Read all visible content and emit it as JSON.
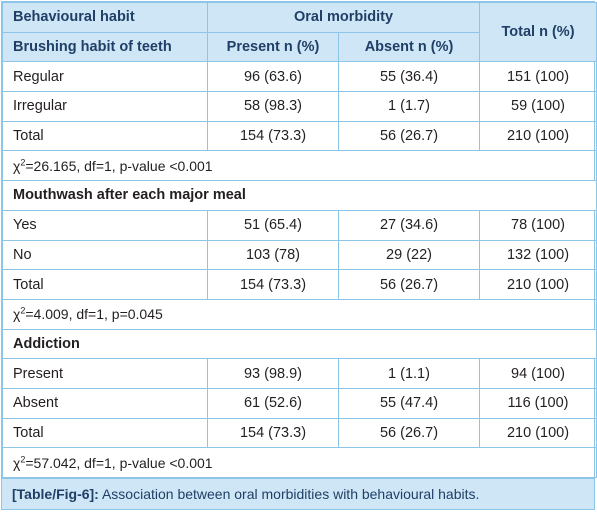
{
  "header": {
    "col1_top": "Behavioural habit",
    "group": "Oral morbidity",
    "col1_sub": "Brushing habit of teeth",
    "present": "Present n (%)",
    "absent": "Absent n (%)",
    "total": "Total n (%)"
  },
  "brushing": {
    "rows": [
      {
        "label": "Regular",
        "present": "96 (63.6)",
        "absent": "55 (36.4)",
        "total": "151 (100)"
      },
      {
        "label": "Irregular",
        "present": "58 (98.3)",
        "absent": "1 (1.7)",
        "total": "59 (100)"
      },
      {
        "label": "Total",
        "present": "154 (73.3)",
        "absent": "56 (26.7)",
        "total": "210 (100)"
      }
    ],
    "stat_chi": "χ",
    "stat_sup": "2",
    "stat_rest": "=26.165, df=1, p-value <0.001"
  },
  "mouthwash": {
    "title": "Mouthwash after each major meal",
    "rows": [
      {
        "label": "Yes",
        "present": "51 (65.4)",
        "absent": "27 (34.6)",
        "total": "78 (100)"
      },
      {
        "label": "No",
        "present": "103 (78)",
        "absent": "29 (22)",
        "total": "132 (100)"
      },
      {
        "label": "Total",
        "present": "154 (73.3)",
        "absent": "56 (26.7)",
        "total": "210 (100)"
      }
    ],
    "stat_chi": "χ",
    "stat_sup": "2",
    "stat_rest": "=4.009, df=1, p=0.045"
  },
  "addiction": {
    "title": "Addiction",
    "rows": [
      {
        "label": "Present",
        "present": "93 (98.9)",
        "absent": "1 (1.1)",
        "total": "94 (100)"
      },
      {
        "label": "Absent",
        "present": "61 (52.6)",
        "absent": "55 (47.4)",
        "total": "116 (100)"
      },
      {
        "label": "Total",
        "present": "154 (73.3)",
        "absent": "56 (26.7)",
        "total": "210 (100)"
      }
    ],
    "stat_chi": "χ",
    "stat_sup": "2",
    "stat_rest": "=57.042, df=1, p-value <0.001"
  },
  "caption": {
    "label": "[Table/Fig-6]:",
    "text": " Association between oral morbidities with behavioural habits."
  }
}
